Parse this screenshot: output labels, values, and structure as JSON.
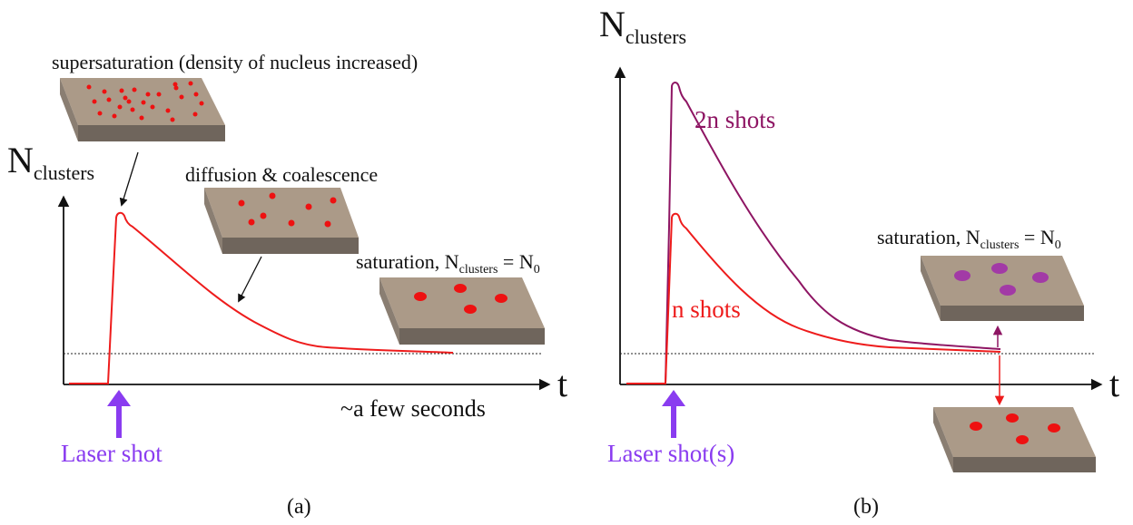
{
  "panel_a": {
    "caption": "(a)",
    "axis_y_main": "N",
    "axis_y_sub": "clusters",
    "axis_x": "t",
    "time_note": "~a few seconds",
    "laser_label": "Laser shot",
    "supersaturation_label": "supersaturation (density of nucleus increased)",
    "diffusion_label": "diffusion & coalescence",
    "saturation_prefix": "saturation,",
    "saturation_n": "N",
    "saturation_sub": "clusters",
    "saturation_eq": "=",
    "saturation_n0": "N",
    "saturation_n0_sub": "0"
  },
  "panel_b": {
    "caption": "(b)",
    "axis_y_main": "N",
    "axis_y_sub": "clusters",
    "axis_x": "t",
    "laser_label": "Laser shot(s)",
    "curve_2n_label": "2n shots",
    "curve_n_label": "n shots",
    "saturation_prefix": "saturation,",
    "saturation_n": "N",
    "saturation_sub": "clusters",
    "saturation_eq": "=",
    "saturation_n0": "N",
    "saturation_n0_sub": "0"
  },
  "colors": {
    "curve_n": "#ee1c1c",
    "curve_2n": "#8e1563",
    "laser_arrow": "#8a3cf0",
    "dot_red": "#ee1111",
    "dot_purple": "#a23aa6",
    "substrate_top": "#ab9a88",
    "substrate_front": "#6f655c",
    "substrate_side": "#8a7e72"
  }
}
